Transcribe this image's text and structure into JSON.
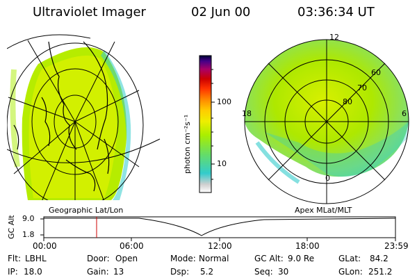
{
  "header": {
    "title": "Ultraviolet Imager",
    "date": "02 Jun 00",
    "time": "03:36:34 UT"
  },
  "colorbar": {
    "unit_label": "photon cm⁻²s⁻¹",
    "ticks": [
      "100",
      "10"
    ],
    "scale": "log"
  },
  "left_panel": {
    "caption": "Geographic Lat/Lon"
  },
  "right_panel": {
    "caption": "Apex MLat/MLT",
    "mlt_labels": [
      "12",
      "18",
      "6",
      "0"
    ],
    "lat_labels": [
      "60",
      "70",
      "80"
    ]
  },
  "timeline": {
    "ylabel": "GC Alt",
    "y_ticks": [
      "9.0",
      "1.8"
    ],
    "x_ticks": [
      "00:00",
      "06:00",
      "12:00",
      "18:00",
      "23:59"
    ],
    "marker_time": "03:36"
  },
  "info": {
    "row1": [
      {
        "label": "Flt:",
        "value": "LBHL"
      },
      {
        "label": "Door:",
        "value": "Open"
      },
      {
        "label": "Mode:",
        "value": "Normal"
      },
      {
        "label": "GC Alt:",
        "value": "9.0 Re"
      },
      {
        "label": "GLat:",
        "value": "84.2"
      }
    ],
    "row2": [
      {
        "label": "IP:",
        "value": "18.0"
      },
      {
        "label": "Gain:",
        "value": "13"
      },
      {
        "label": "Dsp:",
        "value": "5.2"
      },
      {
        "label": "Seq:",
        "value": "30"
      },
      {
        "label": "GLon:",
        "value": "251.2"
      }
    ]
  },
  "colors": {
    "marker": "#cc0000",
    "colorbar": [
      "#ffffff",
      "#cfcfcf",
      "#33cccc",
      "#66dd66",
      "#aaee00",
      "#eeee00",
      "#ffcc00",
      "#ff8800",
      "#ff3300",
      "#cc0000",
      "#aa0066",
      "#660099",
      "#000066"
    ]
  }
}
